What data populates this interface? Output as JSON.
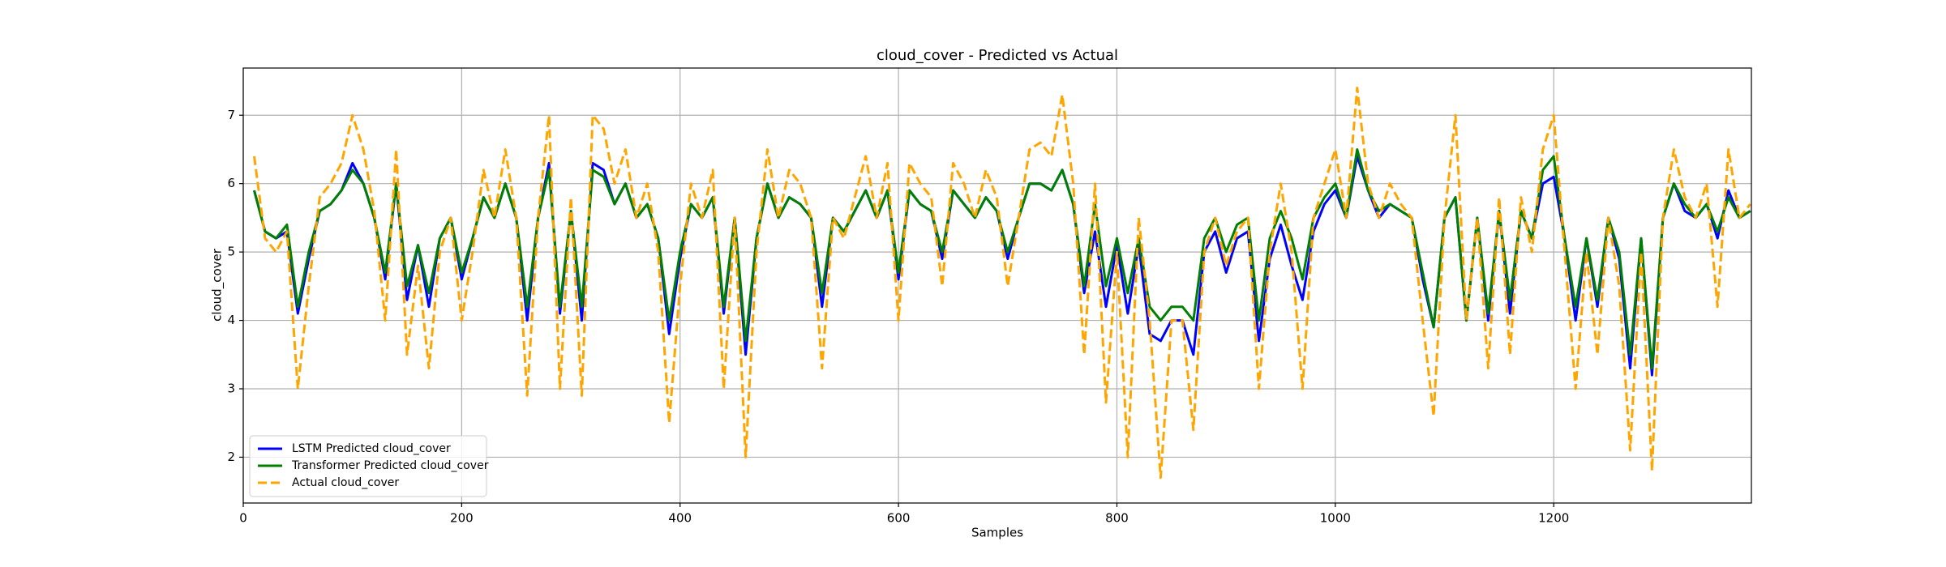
{
  "chart_data": {
    "type": "line",
    "title": "cloud_cover - Predicted vs Actual",
    "xlabel": "Samples",
    "ylabel": "cloud_cover",
    "x": [
      10,
      20,
      30,
      40,
      50,
      60,
      70,
      80,
      90,
      100,
      110,
      120,
      130,
      140,
      150,
      160,
      170,
      180,
      190,
      200,
      210,
      220,
      230,
      240,
      250,
      260,
      270,
      280,
      290,
      300,
      310,
      320,
      330,
      340,
      350,
      360,
      370,
      380,
      390,
      400,
      410,
      420,
      430,
      440,
      450,
      460,
      470,
      480,
      490,
      500,
      510,
      520,
      530,
      540,
      550,
      560,
      570,
      580,
      590,
      600,
      610,
      620,
      630,
      640,
      650,
      660,
      670,
      680,
      690,
      700,
      710,
      720,
      730,
      740,
      750,
      760,
      770,
      780,
      790,
      800,
      810,
      820,
      830,
      840,
      850,
      860,
      870,
      880,
      890,
      900,
      910,
      920,
      930,
      940,
      950,
      960,
      970,
      980,
      990,
      1000,
      1010,
      1020,
      1030,
      1040,
      1050,
      1060,
      1070,
      1080,
      1090,
      1100,
      1110,
      1120,
      1130,
      1140,
      1150,
      1160,
      1170,
      1180,
      1190,
      1200,
      1210,
      1220,
      1230,
      1240,
      1250,
      1260,
      1270,
      1280,
      1290,
      1300,
      1310,
      1320,
      1330,
      1340,
      1350,
      1360,
      1370,
      1380
    ],
    "series": [
      {
        "name": "LSTM Predicted cloud_cover",
        "color": "#0000ff",
        "linestyle": "solid",
        "values": [
          5.9,
          5.3,
          5.2,
          5.3,
          4.1,
          4.9,
          5.6,
          5.7,
          5.9,
          6.3,
          6.0,
          5.5,
          4.6,
          6.0,
          4.3,
          5.1,
          4.2,
          5.2,
          5.5,
          4.6,
          5.2,
          5.8,
          5.5,
          6.0,
          5.5,
          4.0,
          5.5,
          6.3,
          4.1,
          5.6,
          4.0,
          6.3,
          6.2,
          5.7,
          6.0,
          5.5,
          5.7,
          5.2,
          3.8,
          4.9,
          5.7,
          5.5,
          5.8,
          4.1,
          5.5,
          3.5,
          5.2,
          6.0,
          5.5,
          5.8,
          5.7,
          5.5,
          4.2,
          5.5,
          5.3,
          5.6,
          5.9,
          5.5,
          5.9,
          4.6,
          5.9,
          5.7,
          5.6,
          4.9,
          5.9,
          5.7,
          5.5,
          5.8,
          5.6,
          4.9,
          5.5,
          6.0,
          6.0,
          5.9,
          6.2,
          5.7,
          4.4,
          5.3,
          4.2,
          5.1,
          4.1,
          5.1,
          3.8,
          3.7,
          4.0,
          4.0,
          3.5,
          5.0,
          5.3,
          4.7,
          5.2,
          5.3,
          3.7,
          4.9,
          5.4,
          4.8,
          4.3,
          5.3,
          5.7,
          5.9,
          5.5,
          6.4,
          5.9,
          5.5,
          5.7,
          5.6,
          5.5,
          4.6,
          3.9,
          5.5,
          5.8,
          4.0,
          5.5,
          4.0,
          5.6,
          4.1,
          5.6,
          5.2,
          6.0,
          6.1,
          5.2,
          4.0,
          5.2,
          4.2,
          5.5,
          4.9,
          3.3,
          5.2,
          3.2,
          5.5,
          6.0,
          5.6,
          5.5,
          5.7,
          5.2,
          5.9,
          5.5,
          5.6
        ]
      },
      {
        "name": "Transformer Predicted cloud_cover",
        "color": "#008000",
        "linestyle": "solid",
        "values": [
          5.9,
          5.3,
          5.2,
          5.4,
          4.2,
          5.0,
          5.6,
          5.7,
          5.9,
          6.2,
          6.0,
          5.5,
          4.7,
          6.0,
          4.5,
          5.1,
          4.4,
          5.2,
          5.5,
          4.7,
          5.2,
          5.8,
          5.5,
          6.0,
          5.5,
          4.2,
          5.5,
          6.2,
          4.2,
          5.6,
          4.2,
          6.2,
          6.1,
          5.7,
          6.0,
          5.5,
          5.7,
          5.2,
          4.0,
          5.0,
          5.7,
          5.5,
          5.8,
          4.2,
          5.5,
          3.7,
          5.2,
          6.0,
          5.5,
          5.8,
          5.7,
          5.5,
          4.4,
          5.5,
          5.3,
          5.6,
          5.9,
          5.5,
          5.9,
          4.7,
          5.9,
          5.7,
          5.6,
          5.0,
          5.9,
          5.7,
          5.5,
          5.8,
          5.6,
          5.0,
          5.5,
          6.0,
          6.0,
          5.9,
          6.2,
          5.7,
          4.5,
          5.7,
          4.5,
          5.2,
          4.4,
          5.2,
          4.2,
          4.0,
          4.2,
          4.2,
          4.0,
          5.2,
          5.5,
          5.0,
          5.4,
          5.5,
          4.0,
          5.2,
          5.6,
          5.2,
          4.6,
          5.5,
          5.8,
          6.0,
          5.5,
          6.5,
          5.9,
          5.6,
          5.7,
          5.6,
          5.5,
          4.7,
          3.9,
          5.5,
          5.8,
          4.0,
          5.5,
          4.1,
          5.6,
          4.3,
          5.6,
          5.2,
          6.2,
          6.4,
          5.2,
          4.2,
          5.2,
          4.3,
          5.5,
          5.0,
          3.5,
          5.2,
          3.3,
          5.5,
          6.0,
          5.7,
          5.5,
          5.7,
          5.3,
          5.8,
          5.5,
          5.6
        ]
      },
      {
        "name": "Actual cloud_cover",
        "color": "#ffa500",
        "linestyle": "dashed",
        "values": [
          6.4,
          5.2,
          5.0,
          5.3,
          3.0,
          4.5,
          5.8,
          6.0,
          6.3,
          7.0,
          6.5,
          5.6,
          4.0,
          6.5,
          3.5,
          4.8,
          3.3,
          5.0,
          5.5,
          4.0,
          5.0,
          6.2,
          5.5,
          6.5,
          5.5,
          2.9,
          5.5,
          7.0,
          3.0,
          5.8,
          2.9,
          7.0,
          6.8,
          6.0,
          6.5,
          5.5,
          6.0,
          5.0,
          2.5,
          4.5,
          6.0,
          5.5,
          6.2,
          3.0,
          5.5,
          2.0,
          5.0,
          6.5,
          5.5,
          6.2,
          6.0,
          5.5,
          3.3,
          5.5,
          5.2,
          5.8,
          6.4,
          5.5,
          6.3,
          4.0,
          6.3,
          6.0,
          5.8,
          4.5,
          6.3,
          6.0,
          5.5,
          6.2,
          5.8,
          4.5,
          5.5,
          6.5,
          6.6,
          6.4,
          7.3,
          6.0,
          3.5,
          6.0,
          2.8,
          5.0,
          2.0,
          5.5,
          4.0,
          1.7,
          4.0,
          4.0,
          2.4,
          5.0,
          5.5,
          4.8,
          5.3,
          5.5,
          3.0,
          5.0,
          6.0,
          5.0,
          3.0,
          5.5,
          6.0,
          6.5,
          5.5,
          7.4,
          6.0,
          5.5,
          6.0,
          5.7,
          5.5,
          4.0,
          2.6,
          5.5,
          7.0,
          4.0,
          5.5,
          3.3,
          5.8,
          3.5,
          5.8,
          5.0,
          6.5,
          7.0,
          5.0,
          3.0,
          5.0,
          3.5,
          5.5,
          4.5,
          2.1,
          5.0,
          1.8,
          5.5,
          6.5,
          5.8,
          5.5,
          6.0,
          4.2,
          6.5,
          5.5,
          5.7
        ]
      }
    ],
    "xlim": [
      0,
      1381
    ],
    "ylim": [
      1.33,
      7.69
    ],
    "xticks": [
      0,
      200,
      400,
      600,
      800,
      1000,
      1200
    ],
    "yticks": [
      2,
      3,
      4,
      5,
      6,
      7
    ],
    "grid": true,
    "legend": "lower left"
  }
}
